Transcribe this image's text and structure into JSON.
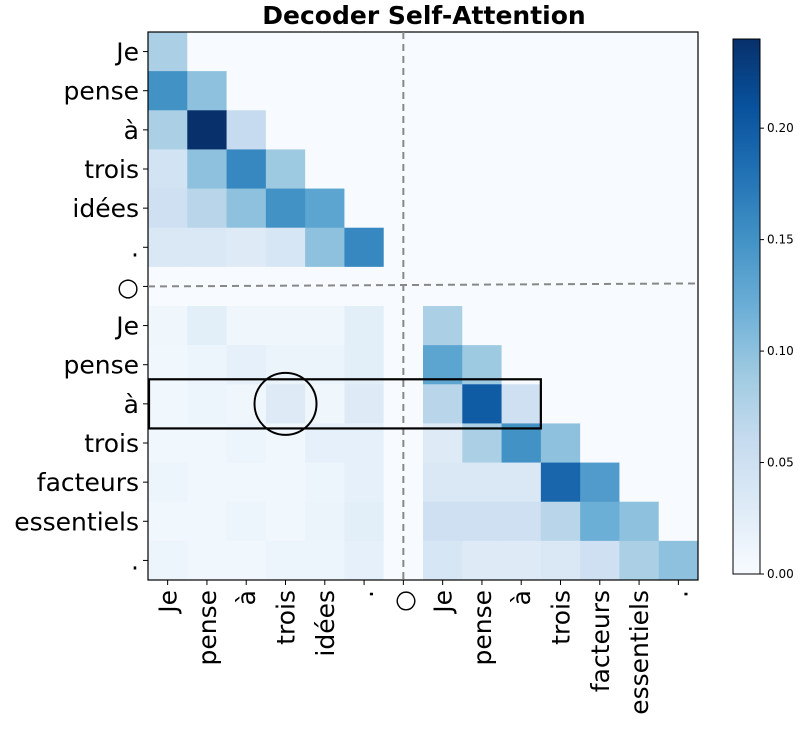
{
  "chart_data": {
    "type": "heatmap",
    "title": "Decoder Self-Attention",
    "row_labels": [
      "Je",
      "pense",
      "à",
      "trois",
      "idées",
      ".",
      "○",
      "Je",
      "pense",
      "à",
      "trois",
      "facteurs",
      "essentiels",
      "."
    ],
    "col_labels": [
      "Je",
      "pense",
      "à",
      "trois",
      "idées",
      ".",
      "○",
      "Je",
      "pense",
      "à",
      "trois",
      "facteurs",
      "essentiels",
      "."
    ],
    "values": [
      [
        0.08,
        0,
        0,
        0,
        0,
        0,
        0,
        0,
        0,
        0,
        0,
        0,
        0,
        0
      ],
      [
        0.15,
        0.1,
        0,
        0,
        0,
        0,
        0,
        0,
        0,
        0,
        0,
        0,
        0,
        0
      ],
      [
        0.08,
        0.24,
        0.06,
        0,
        0,
        0,
        0,
        0,
        0,
        0,
        0,
        0,
        0,
        0
      ],
      [
        0.045,
        0.1,
        0.16,
        0.09,
        0,
        0,
        0,
        0,
        0,
        0,
        0,
        0,
        0,
        0
      ],
      [
        0.05,
        0.07,
        0.1,
        0.15,
        0.13,
        0,
        0,
        0,
        0,
        0,
        0,
        0,
        0,
        0
      ],
      [
        0.035,
        0.035,
        0.03,
        0.04,
        0.1,
        0.16,
        0,
        0,
        0,
        0,
        0,
        0,
        0,
        0
      ],
      [
        0,
        0,
        0,
        0,
        0,
        0,
        0,
        0,
        0,
        0,
        0,
        0,
        0,
        0
      ],
      [
        0.01,
        0.025,
        0.01,
        0.01,
        0.01,
        0.025,
        0,
        0.08,
        0,
        0,
        0,
        0,
        0,
        0
      ],
      [
        0.008,
        0.012,
        0.02,
        0.015,
        0.015,
        0.025,
        0,
        0.13,
        0.09,
        0,
        0,
        0,
        0,
        0
      ],
      [
        0.008,
        0.012,
        0.01,
        0.03,
        0.01,
        0.03,
        0,
        0.07,
        0.2,
        0.05,
        0,
        0,
        0,
        0
      ],
      [
        0.008,
        0.008,
        0.012,
        0.008,
        0.02,
        0.02,
        0,
        0.03,
        0.08,
        0.15,
        0.1,
        0,
        0,
        0
      ],
      [
        0.012,
        0.008,
        0.008,
        0.008,
        0.012,
        0.02,
        0,
        0.035,
        0.035,
        0.035,
        0.19,
        0.14,
        0,
        0
      ],
      [
        0.008,
        0.008,
        0.012,
        0.008,
        0.015,
        0.025,
        0,
        0.05,
        0.05,
        0.05,
        0.07,
        0.12,
        0.1,
        0
      ],
      [
        0.012,
        0.008,
        0.008,
        0.012,
        0.012,
        0.02,
        0,
        0.04,
        0.03,
        0.03,
        0.035,
        0.05,
        0.08,
        0.1
      ]
    ],
    "colorbar": {
      "range": [
        0,
        0.24
      ],
      "ticks": [
        "0.00",
        "0.05",
        "0.10",
        "0.15",
        "0.20"
      ],
      "tick_values": [
        0,
        0.05,
        0.1,
        0.15,
        0.2
      ],
      "colormap": "Blues"
    },
    "separator_index": 6,
    "highlight_row": 9,
    "highlight_cols": [
      0,
      9
    ],
    "highlight_circle_cell": [
      9,
      3
    ],
    "colors": {
      "separator": "#888888",
      "highlight": "#000000"
    }
  }
}
